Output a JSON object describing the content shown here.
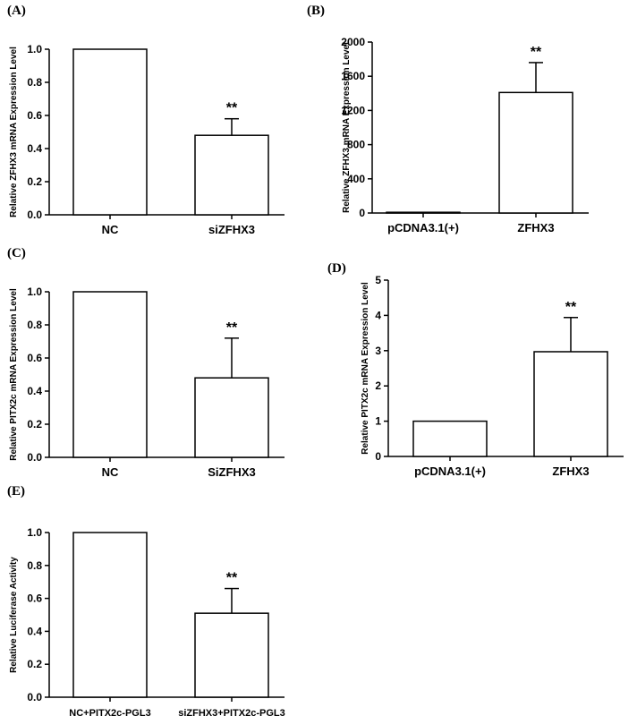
{
  "chart_data": [
    {
      "panel": "(A)",
      "type": "bar",
      "categories": [
        "NC",
        "siZFHX3"
      ],
      "values": [
        1.0,
        0.48
      ],
      "error": [
        0,
        0.1
      ],
      "significance": [
        "",
        "**"
      ],
      "ylabel": "Relative ZFHX3 mRNA Expression Level",
      "ylim": [
        0,
        1.0
      ],
      "yticks": [
        "0.0",
        "0.2",
        "0.4",
        "0.6",
        "0.8",
        "1.0"
      ]
    },
    {
      "panel": "(B)",
      "type": "bar",
      "categories": [
        "pCDNA3.1(+)",
        "ZFHX3"
      ],
      "values": [
        1,
        1410
      ],
      "error": [
        0,
        350
      ],
      "significance": [
        "",
        "**"
      ],
      "ylabel": "Relative ZFHX3 mRNA Expression Level",
      "ylim": [
        0,
        2000
      ],
      "yticks": [
        "0",
        "400",
        "800",
        "1200",
        "1600",
        "2000"
      ]
    },
    {
      "panel": "(C)",
      "type": "bar",
      "categories": [
        "NC",
        "SiZFHX3"
      ],
      "values": [
        1.0,
        0.48
      ],
      "error": [
        0,
        0.24
      ],
      "significance": [
        "",
        "**"
      ],
      "ylabel": "Relative PITX2c mRNA Expression Level",
      "ylim": [
        0,
        1.0
      ],
      "yticks": [
        "0.0",
        "0.2",
        "0.4",
        "0.6",
        "0.8",
        "1.0"
      ]
    },
    {
      "panel": "(D)",
      "type": "bar",
      "categories": [
        "pCDNA3.1(+)",
        "ZFHX3"
      ],
      "values": [
        1.0,
        2.97
      ],
      "error": [
        0,
        0.97
      ],
      "significance": [
        "",
        "**"
      ],
      "ylabel": "Relative PITX2c mRNA Expression Level",
      "ylim": [
        0,
        5
      ],
      "yticks": [
        "0",
        "1",
        "2",
        "3",
        "4",
        "5"
      ]
    },
    {
      "panel": "(E)",
      "type": "bar",
      "categories": [
        "NC+PITX2c-PGL3",
        "siZFHX3+PITX2c-PGL3"
      ],
      "values": [
        1.0,
        0.51
      ],
      "error": [
        0,
        0.15
      ],
      "significance": [
        "",
        "**"
      ],
      "ylabel": "Relative Luciferase Activity",
      "ylim": [
        0,
        1.0
      ],
      "yticks": [
        "0.0",
        "0.2",
        "0.4",
        "0.6",
        "0.8",
        "1.0"
      ]
    }
  ]
}
